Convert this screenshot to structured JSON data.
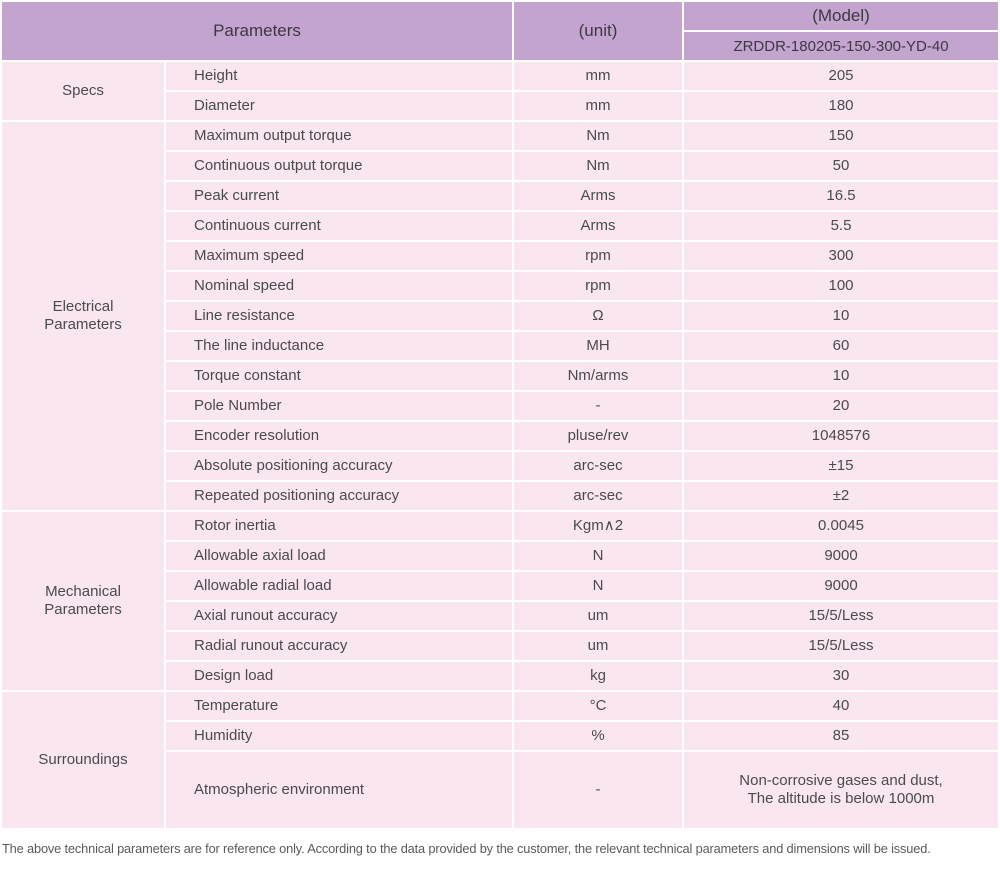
{
  "colors": {
    "header_bg": "#c2a4cf",
    "row_bg": "#f9e6f0",
    "header_text": "#3e3744",
    "body_text": "#4b4b4b",
    "footer_text": "#5a5a5a"
  },
  "table": {
    "header": {
      "parameters_label": "Parameters",
      "unit_label": "(unit)",
      "model_label": "(Model)",
      "model_value": "ZRDDR-180205-150-300-YD-40"
    },
    "groups": [
      {
        "label": "Specs",
        "rows": [
          {
            "param": "Height",
            "unit": "mm",
            "value": "205"
          },
          {
            "param": "Diameter",
            "unit": "mm",
            "value": "180"
          }
        ]
      },
      {
        "label": "Electrical Parameters",
        "rows": [
          {
            "param": "Maximum output torque",
            "unit": "Nm",
            "value": "150"
          },
          {
            "param": "Continuous output torque",
            "unit": "Nm",
            "value": "50"
          },
          {
            "param": "Peak current",
            "unit": "Arms",
            "value": "16.5"
          },
          {
            "param": "Continuous current",
            "unit": "Arms",
            "value": "5.5"
          },
          {
            "param": "Maximum speed",
            "unit": "rpm",
            "value": "300"
          },
          {
            "param": "Nominal speed",
            "unit": "rpm",
            "value": "100"
          },
          {
            "param": "Line resistance",
            "unit": "Ω",
            "value": "10"
          },
          {
            "param": "The line inductance",
            "unit": "MH",
            "value": "60"
          },
          {
            "param": "Torque constant",
            "unit": "Nm/arms",
            "value": "10"
          },
          {
            "param": "Pole Number",
            "unit": "-",
            "value": "20"
          },
          {
            "param": "Encoder resolution",
            "unit": "pluse/rev",
            "value": "1048576"
          },
          {
            "param": "Absolute positioning accuracy",
            "unit": "arc-sec",
            "value": "±15"
          },
          {
            "param": "Repeated positioning accuracy",
            "unit": "arc-sec",
            "value": "±2"
          }
        ]
      },
      {
        "label": "Mechanical Parameters",
        "rows": [
          {
            "param": "Rotor inertia",
            "unit": "Kgm∧2",
            "value": "0.0045"
          },
          {
            "param": "Allowable axial load",
            "unit": "N",
            "value": "9000"
          },
          {
            "param": "Allowable radial load",
            "unit": "N",
            "value": "9000"
          },
          {
            "param": "Axial runout accuracy",
            "unit": "um",
            "value": "15/5/Less"
          },
          {
            "param": "Radial runout accuracy",
            "unit": "um",
            "value": "15/5/Less"
          },
          {
            "param": "Design load",
            "unit": "kg",
            "value": "30"
          }
        ]
      },
      {
        "label": "Surroundings",
        "rows": [
          {
            "param": "Temperature",
            "unit": "°C",
            "value": "40"
          },
          {
            "param": "Humidity",
            "unit": "%",
            "value": "85"
          },
          {
            "param": "Atmospheric environment",
            "unit": "-",
            "tall": true,
            "value_lines": [
              "Non-corrosive gases and dust,",
              "The altitude is below 1000m"
            ]
          }
        ]
      }
    ],
    "footer_note": "The above technical parameters are for reference only. According to the data provided by the customer, the relevant technical parameters and dimensions will be issued."
  }
}
